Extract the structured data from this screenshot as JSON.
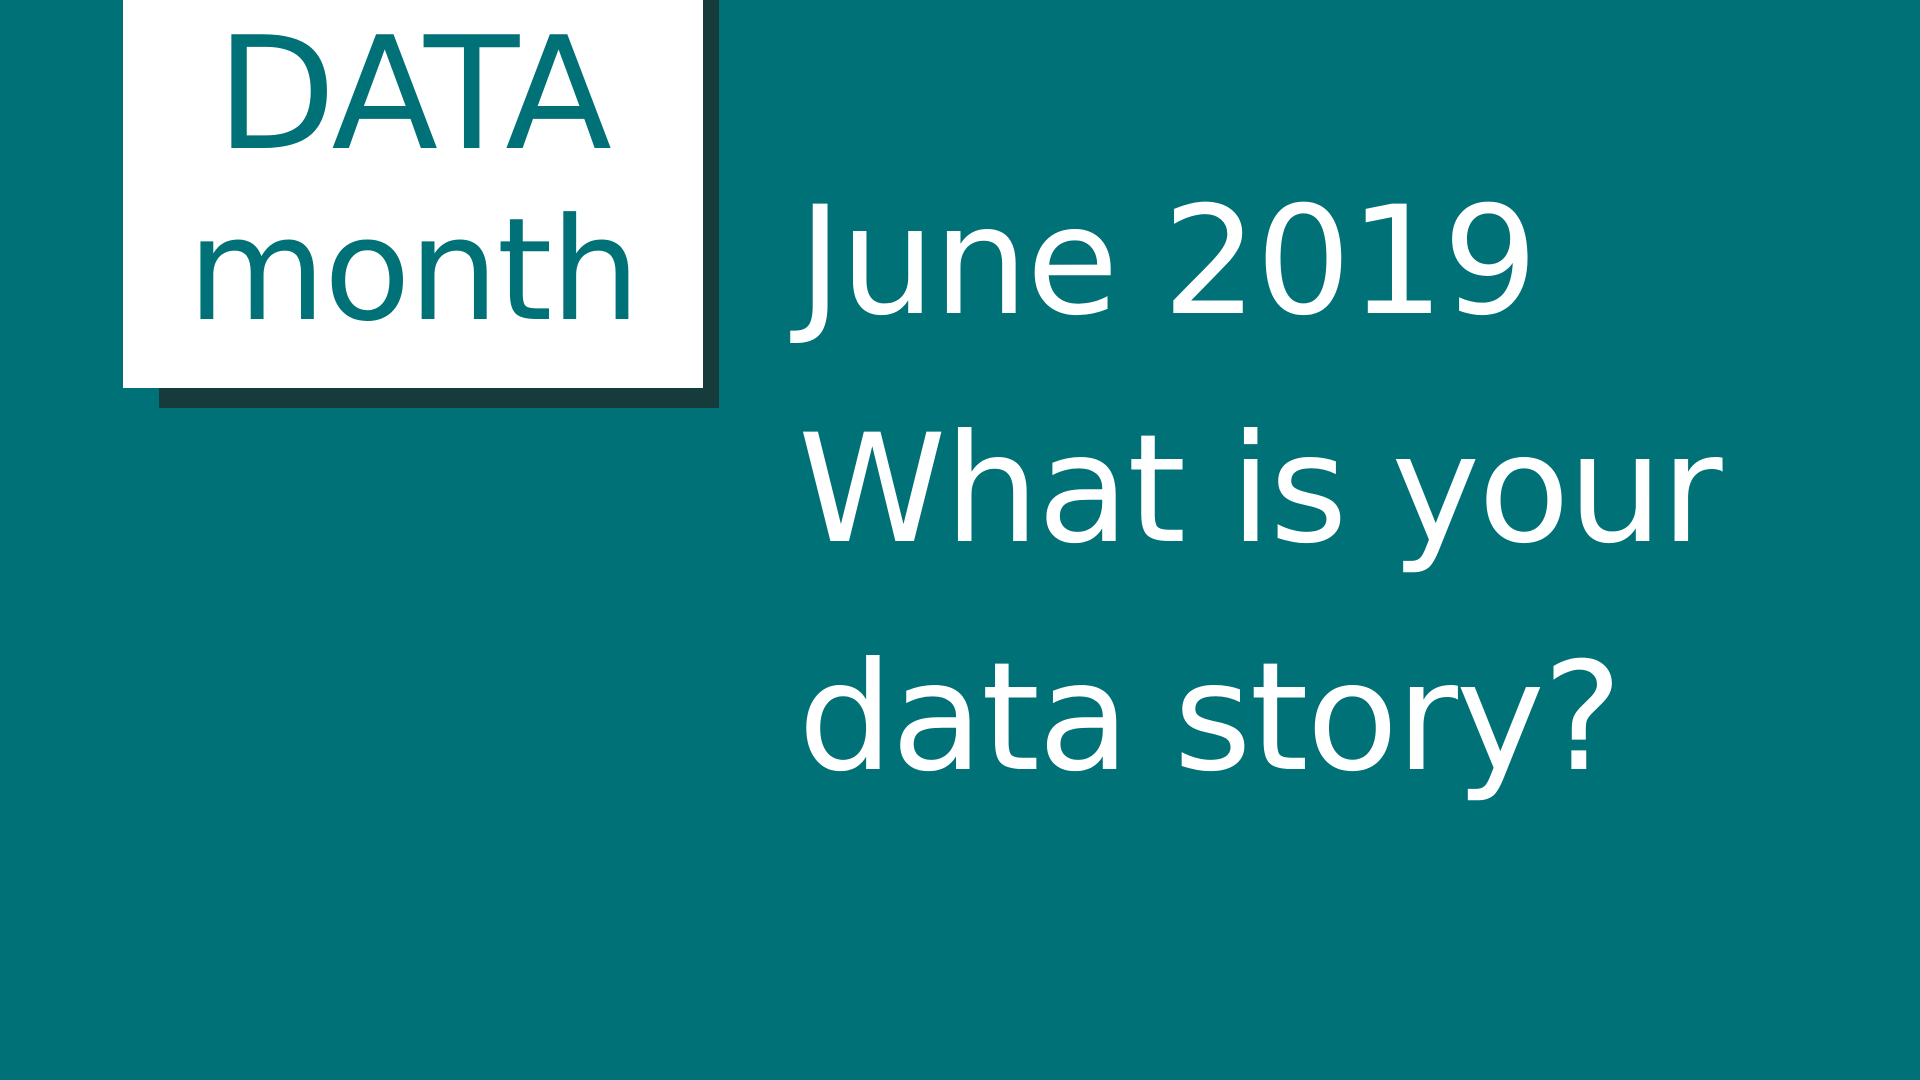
{
  "logo": {
    "line1": "DATA",
    "line2": "month",
    "colors": {
      "card": "#ffffff",
      "shadow": "#163b3b",
      "text": "#007176"
    }
  },
  "headline": {
    "line1": "June 2019",
    "line2": "What is your",
    "line3": "data story?"
  },
  "colors": {
    "background": "#007176",
    "headline_text": "#ffffff"
  }
}
